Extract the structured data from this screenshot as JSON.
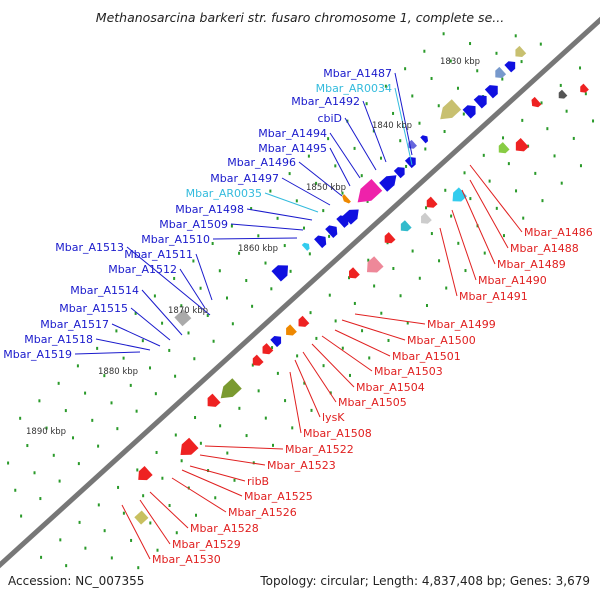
{
  "title": "Methanosarcina barkeri str. fusaro chromosome 1, complete se...",
  "footer": {
    "accession": "Accession: NC_007355",
    "topology": "Topology: circular; Length: 4,837,408 bp; Genes: 3,679"
  },
  "colors": {
    "upper_label": "#1a1acc",
    "upper_rna_label": "#33bbdd",
    "lower_label": "#e02020",
    "backbone": "#777777",
    "tick_dots": "#2a9a2a"
  },
  "kbp_markers": [
    "1830 kbp",
    "1840 kbp",
    "1850 kbp",
    "1860 kbp",
    "1870 kbp",
    "1880 kbp",
    "1890 kbp"
  ],
  "upper_labels": [
    {
      "text": "Mbar_A1487",
      "kind": "gene"
    },
    {
      "text": "Mbar_AR0034",
      "kind": "rna"
    },
    {
      "text": "Mbar_A1492",
      "kind": "gene"
    },
    {
      "text": "cbiD",
      "kind": "gene"
    },
    {
      "text": "Mbar_A1494",
      "kind": "gene"
    },
    {
      "text": "Mbar_A1495",
      "kind": "gene"
    },
    {
      "text": "Mbar_A1496",
      "kind": "gene"
    },
    {
      "text": "Mbar_A1497",
      "kind": "gene"
    },
    {
      "text": "Mbar_AR0035",
      "kind": "rna"
    },
    {
      "text": "Mbar_A1498",
      "kind": "gene"
    },
    {
      "text": "Mbar_A1509",
      "kind": "gene"
    },
    {
      "text": "Mbar_A1510",
      "kind": "gene"
    },
    {
      "text": "Mbar_A1513",
      "kind": "gene"
    },
    {
      "text": "Mbar_A1511",
      "kind": "gene"
    },
    {
      "text": "Mbar_A1512",
      "kind": "gene"
    },
    {
      "text": "Mbar_A1514",
      "kind": "gene"
    },
    {
      "text": "Mbar_A1515",
      "kind": "gene"
    },
    {
      "text": "Mbar_A1517",
      "kind": "gene"
    },
    {
      "text": "Mbar_A1518",
      "kind": "gene"
    },
    {
      "text": "Mbar_A1519",
      "kind": "gene"
    }
  ],
  "lower_labels": [
    "Mbar_A1486",
    "Mbar_A1488",
    "Mbar_A1489",
    "Mbar_A1490",
    "Mbar_A1491",
    "Mbar_A1499",
    "Mbar_A1500",
    "Mbar_A1501",
    "Mbar_A1503",
    "Mbar_A1504",
    "Mbar_A1505",
    "lysK",
    "Mbar_A1508",
    "Mbar_A1522",
    "Mbar_A1523",
    "ribB",
    "Mbar_A1525",
    "Mbar_A1526",
    "Mbar_A1528",
    "Mbar_A1529",
    "Mbar_A1530"
  ]
}
